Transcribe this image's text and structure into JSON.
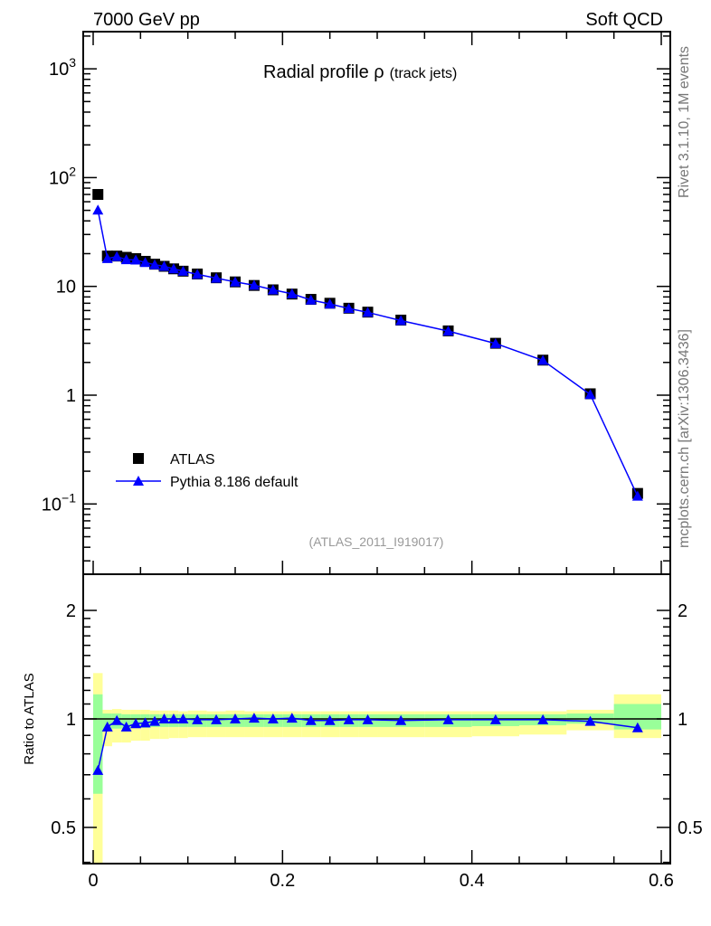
{
  "header": {
    "left": "7000 GeV pp",
    "right": "Soft QCD"
  },
  "side": {
    "top": "Rivet 3.1.10,  1M events",
    "bottom": "mcplots.cern.ch [arXiv:1306.3436]"
  },
  "chart_data": [
    {
      "type": "scatter",
      "title": "Radial profile ρ",
      "title_suffix": "(track jets)",
      "watermark": "(ATLAS_2011_I919017)",
      "yscale": "log",
      "xlim": [
        -0.01,
        0.61
      ],
      "ylim": [
        0.0224,
        2200
      ],
      "ytick_labels": [
        {
          "v": 1000,
          "base": "10",
          "exp": "3"
        },
        {
          "v": 100,
          "base": "10",
          "exp": "2"
        },
        {
          "v": 10,
          "base": "10",
          "exp": ""
        },
        {
          "v": 1,
          "base": "1",
          "exp": ""
        },
        {
          "v": 0.1,
          "base": "10",
          "exp": "−1"
        }
      ],
      "x": [
        0.005,
        0.015,
        0.025,
        0.035,
        0.045,
        0.055,
        0.065,
        0.075,
        0.085,
        0.095,
        0.11,
        0.13,
        0.15,
        0.17,
        0.19,
        0.21,
        0.23,
        0.25,
        0.27,
        0.29,
        0.325,
        0.375,
        0.425,
        0.475,
        0.525,
        0.575
      ],
      "series": [
        {
          "name": "ATLAS",
          "marker": "square",
          "color": "#000000",
          "values": [
            70,
            19,
            19,
            18.5,
            18,
            17,
            16,
            15.3,
            14.5,
            13.8,
            13,
            12,
            11,
            10.2,
            9.3,
            8.5,
            7.6,
            7.0,
            6.3,
            5.8,
            4.9,
            3.9,
            3.0,
            2.1,
            1.03,
            0.125
          ]
        },
        {
          "name": "Pythia 8.186 default",
          "marker": "triangle",
          "color": "#0000ff",
          "values": [
            50.4,
            18.05,
            18.8,
            17.6,
            17.5,
            16.6,
            15.8,
            15.3,
            14.5,
            13.8,
            12.9,
            11.9,
            11.0,
            10.25,
            9.3,
            8.55,
            7.5,
            6.9,
            6.27,
            5.77,
            4.85,
            3.88,
            2.985,
            2.09,
            1.015,
            0.118
          ]
        }
      ],
      "legend": {
        "placement": "bottom-left",
        "entries": [
          "ATLAS",
          "Pythia 8.186 default"
        ]
      }
    },
    {
      "type": "scatter",
      "ylabel": "Ratio to ATLAS",
      "yscale": "log",
      "ylim": [
        0.397,
        2.52
      ],
      "xlim": [
        -0.01,
        0.61
      ],
      "ytick_labels": [
        {
          "v": 2,
          "t": "2"
        },
        {
          "v": 1,
          "t": "1"
        },
        {
          "v": 0.5,
          "t": "0.5"
        }
      ],
      "xtick_labels": [
        {
          "v": 0,
          "t": "0"
        },
        {
          "v": 0.2,
          "t": "0.2"
        },
        {
          "v": 0.4,
          "t": "0.4"
        },
        {
          "v": 0.6,
          "t": "0.6"
        }
      ],
      "bin_edges": [
        0,
        0.01,
        0.02,
        0.03,
        0.04,
        0.05,
        0.06,
        0.07,
        0.08,
        0.09,
        0.1,
        0.12,
        0.14,
        0.16,
        0.18,
        0.2,
        0.22,
        0.24,
        0.26,
        0.28,
        0.3,
        0.35,
        0.4,
        0.45,
        0.5,
        0.55,
        0.6
      ],
      "band_total_lo": [
        0.38,
        0.84,
        0.86,
        0.86,
        0.87,
        0.87,
        0.88,
        0.88,
        0.885,
        0.885,
        0.89,
        0.89,
        0.89,
        0.89,
        0.89,
        0.89,
        0.89,
        0.89,
        0.89,
        0.89,
        0.89,
        0.89,
        0.895,
        0.905,
        0.93,
        0.885
      ],
      "band_total_hi": [
        1.34,
        1.06,
        1.065,
        1.06,
        1.06,
        1.06,
        1.055,
        1.055,
        1.055,
        1.05,
        1.055,
        1.05,
        1.055,
        1.05,
        1.05,
        1.05,
        1.05,
        1.05,
        1.05,
        1.05,
        1.05,
        1.05,
        1.05,
        1.05,
        1.06,
        1.17
      ],
      "band_stat_lo": [
        0.62,
        0.93,
        0.94,
        0.94,
        0.945,
        0.945,
        0.95,
        0.95,
        0.95,
        0.95,
        0.95,
        0.95,
        0.95,
        0.95,
        0.95,
        0.95,
        0.95,
        0.95,
        0.95,
        0.95,
        0.95,
        0.95,
        0.955,
        0.96,
        0.97,
        0.935
      ],
      "band_stat_hi": [
        1.17,
        1.035,
        1.035,
        1.03,
        1.03,
        1.03,
        1.03,
        1.03,
        1.03,
        1.03,
        1.03,
        1.03,
        1.03,
        1.03,
        1.03,
        1.03,
        1.03,
        1.03,
        1.03,
        1.03,
        1.03,
        1.03,
        1.03,
        1.03,
        1.035,
        1.1
      ],
      "band_colors": {
        "total": "#ffff99",
        "stat": "#99ff99"
      },
      "series": [
        {
          "name": "Pythia 8.186 default",
          "color": "#0000ff",
          "values": [
            0.72,
            0.95,
            0.99,
            0.95,
            0.97,
            0.975,
            0.985,
            1.0,
            1.0,
            1.0,
            0.995,
            0.995,
            1.0,
            1.005,
            1.0,
            1.005,
            0.99,
            0.99,
            0.995,
            0.995,
            0.99,
            0.995,
            0.995,
            0.995,
            0.985,
            0.945
          ]
        }
      ]
    }
  ]
}
